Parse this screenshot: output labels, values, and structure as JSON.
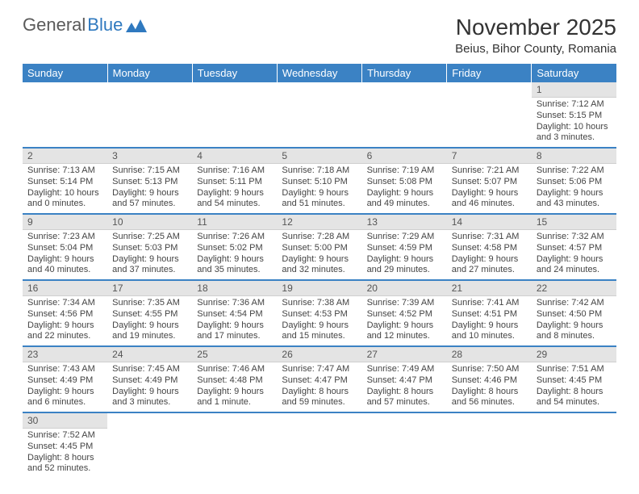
{
  "logo": {
    "text1": "General",
    "text2": "Blue"
  },
  "title": "November 2025",
  "location": "Beius, Bihor County, Romania",
  "colors": {
    "header_bg": "#3b82c4",
    "header_fg": "#ffffff",
    "daynum_bg": "#e4e4e4",
    "row_divider": "#3b82c4",
    "logo_gray": "#5a5a5a",
    "logo_blue": "#2f79bf"
  },
  "weekdays": [
    "Sunday",
    "Monday",
    "Tuesday",
    "Wednesday",
    "Thursday",
    "Friday",
    "Saturday"
  ],
  "weeks": [
    [
      null,
      null,
      null,
      null,
      null,
      null,
      {
        "n": "1",
        "sr": "Sunrise: 7:12 AM",
        "ss": "Sunset: 5:15 PM",
        "dl1": "Daylight: 10 hours",
        "dl2": "and 3 minutes."
      }
    ],
    [
      {
        "n": "2",
        "sr": "Sunrise: 7:13 AM",
        "ss": "Sunset: 5:14 PM",
        "dl1": "Daylight: 10 hours",
        "dl2": "and 0 minutes."
      },
      {
        "n": "3",
        "sr": "Sunrise: 7:15 AM",
        "ss": "Sunset: 5:13 PM",
        "dl1": "Daylight: 9 hours",
        "dl2": "and 57 minutes."
      },
      {
        "n": "4",
        "sr": "Sunrise: 7:16 AM",
        "ss": "Sunset: 5:11 PM",
        "dl1": "Daylight: 9 hours",
        "dl2": "and 54 minutes."
      },
      {
        "n": "5",
        "sr": "Sunrise: 7:18 AM",
        "ss": "Sunset: 5:10 PM",
        "dl1": "Daylight: 9 hours",
        "dl2": "and 51 minutes."
      },
      {
        "n": "6",
        "sr": "Sunrise: 7:19 AM",
        "ss": "Sunset: 5:08 PM",
        "dl1": "Daylight: 9 hours",
        "dl2": "and 49 minutes."
      },
      {
        "n": "7",
        "sr": "Sunrise: 7:21 AM",
        "ss": "Sunset: 5:07 PM",
        "dl1": "Daylight: 9 hours",
        "dl2": "and 46 minutes."
      },
      {
        "n": "8",
        "sr": "Sunrise: 7:22 AM",
        "ss": "Sunset: 5:06 PM",
        "dl1": "Daylight: 9 hours",
        "dl2": "and 43 minutes."
      }
    ],
    [
      {
        "n": "9",
        "sr": "Sunrise: 7:23 AM",
        "ss": "Sunset: 5:04 PM",
        "dl1": "Daylight: 9 hours",
        "dl2": "and 40 minutes."
      },
      {
        "n": "10",
        "sr": "Sunrise: 7:25 AM",
        "ss": "Sunset: 5:03 PM",
        "dl1": "Daylight: 9 hours",
        "dl2": "and 37 minutes."
      },
      {
        "n": "11",
        "sr": "Sunrise: 7:26 AM",
        "ss": "Sunset: 5:02 PM",
        "dl1": "Daylight: 9 hours",
        "dl2": "and 35 minutes."
      },
      {
        "n": "12",
        "sr": "Sunrise: 7:28 AM",
        "ss": "Sunset: 5:00 PM",
        "dl1": "Daylight: 9 hours",
        "dl2": "and 32 minutes."
      },
      {
        "n": "13",
        "sr": "Sunrise: 7:29 AM",
        "ss": "Sunset: 4:59 PM",
        "dl1": "Daylight: 9 hours",
        "dl2": "and 29 minutes."
      },
      {
        "n": "14",
        "sr": "Sunrise: 7:31 AM",
        "ss": "Sunset: 4:58 PM",
        "dl1": "Daylight: 9 hours",
        "dl2": "and 27 minutes."
      },
      {
        "n": "15",
        "sr": "Sunrise: 7:32 AM",
        "ss": "Sunset: 4:57 PM",
        "dl1": "Daylight: 9 hours",
        "dl2": "and 24 minutes."
      }
    ],
    [
      {
        "n": "16",
        "sr": "Sunrise: 7:34 AM",
        "ss": "Sunset: 4:56 PM",
        "dl1": "Daylight: 9 hours",
        "dl2": "and 22 minutes."
      },
      {
        "n": "17",
        "sr": "Sunrise: 7:35 AM",
        "ss": "Sunset: 4:55 PM",
        "dl1": "Daylight: 9 hours",
        "dl2": "and 19 minutes."
      },
      {
        "n": "18",
        "sr": "Sunrise: 7:36 AM",
        "ss": "Sunset: 4:54 PM",
        "dl1": "Daylight: 9 hours",
        "dl2": "and 17 minutes."
      },
      {
        "n": "19",
        "sr": "Sunrise: 7:38 AM",
        "ss": "Sunset: 4:53 PM",
        "dl1": "Daylight: 9 hours",
        "dl2": "and 15 minutes."
      },
      {
        "n": "20",
        "sr": "Sunrise: 7:39 AM",
        "ss": "Sunset: 4:52 PM",
        "dl1": "Daylight: 9 hours",
        "dl2": "and 12 minutes."
      },
      {
        "n": "21",
        "sr": "Sunrise: 7:41 AM",
        "ss": "Sunset: 4:51 PM",
        "dl1": "Daylight: 9 hours",
        "dl2": "and 10 minutes."
      },
      {
        "n": "22",
        "sr": "Sunrise: 7:42 AM",
        "ss": "Sunset: 4:50 PM",
        "dl1": "Daylight: 9 hours",
        "dl2": "and 8 minutes."
      }
    ],
    [
      {
        "n": "23",
        "sr": "Sunrise: 7:43 AM",
        "ss": "Sunset: 4:49 PM",
        "dl1": "Daylight: 9 hours",
        "dl2": "and 6 minutes."
      },
      {
        "n": "24",
        "sr": "Sunrise: 7:45 AM",
        "ss": "Sunset: 4:49 PM",
        "dl1": "Daylight: 9 hours",
        "dl2": "and 3 minutes."
      },
      {
        "n": "25",
        "sr": "Sunrise: 7:46 AM",
        "ss": "Sunset: 4:48 PM",
        "dl1": "Daylight: 9 hours",
        "dl2": "and 1 minute."
      },
      {
        "n": "26",
        "sr": "Sunrise: 7:47 AM",
        "ss": "Sunset: 4:47 PM",
        "dl1": "Daylight: 8 hours",
        "dl2": "and 59 minutes."
      },
      {
        "n": "27",
        "sr": "Sunrise: 7:49 AM",
        "ss": "Sunset: 4:47 PM",
        "dl1": "Daylight: 8 hours",
        "dl2": "and 57 minutes."
      },
      {
        "n": "28",
        "sr": "Sunrise: 7:50 AM",
        "ss": "Sunset: 4:46 PM",
        "dl1": "Daylight: 8 hours",
        "dl2": "and 56 minutes."
      },
      {
        "n": "29",
        "sr": "Sunrise: 7:51 AM",
        "ss": "Sunset: 4:45 PM",
        "dl1": "Daylight: 8 hours",
        "dl2": "and 54 minutes."
      }
    ],
    [
      {
        "n": "30",
        "sr": "Sunrise: 7:52 AM",
        "ss": "Sunset: 4:45 PM",
        "dl1": "Daylight: 8 hours",
        "dl2": "and 52 minutes."
      },
      null,
      null,
      null,
      null,
      null,
      null
    ]
  ]
}
